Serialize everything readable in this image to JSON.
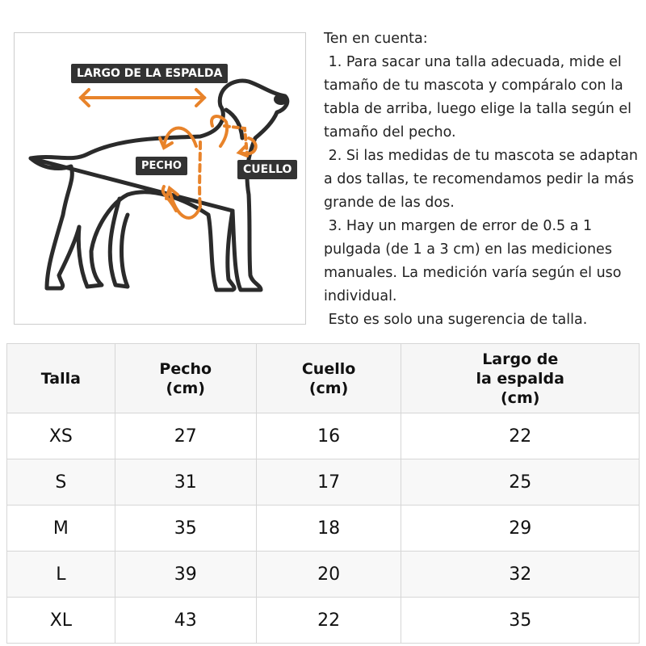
{
  "diagram": {
    "labels": {
      "back_length": "LARGO DE LA ESPALDA",
      "chest": "PECHO",
      "neck": "CUELLO"
    },
    "accent_color": "#e8832a",
    "label_bg": "#333333"
  },
  "notes": {
    "lines": [
      "Ten en cuenta:",
      " 1. Para sacar una talla adecuada, mide el",
      "tamaño de tu mascota y compáralo con la",
      "tabla de arriba, luego elige la talla según el",
      "tamaño del pecho.",
      " 2. Si las medidas de tu mascota se adaptan",
      "a dos tallas, te recomendamos pedir la más",
      "grande de las dos.",
      " 3. Hay un margen de error de 0.5 a 1",
      "pulgada (de 1 a 3 cm) en las mediciones",
      "manuales. La medición varía según el uso",
      "individual.",
      " Esto es solo una sugerencia de talla."
    ]
  },
  "table": {
    "headers": [
      [
        "Talla"
      ],
      [
        "Pecho",
        "(cm)"
      ],
      [
        "Cuello",
        "(cm)"
      ],
      [
        "Largo de",
        "la espalda",
        "(cm)"
      ]
    ],
    "rows": [
      [
        "XS",
        "27",
        "16",
        "22"
      ],
      [
        "S",
        "31",
        "17",
        "25"
      ],
      [
        "M",
        "35",
        "18",
        "29"
      ],
      [
        "L",
        "39",
        "20",
        "32"
      ],
      [
        "XL",
        "43",
        "22",
        "35"
      ]
    ]
  }
}
